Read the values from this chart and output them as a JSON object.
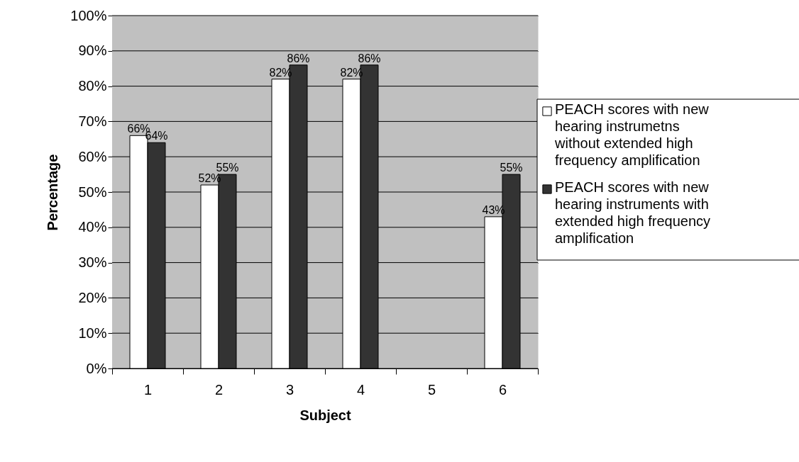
{
  "chart_data": {
    "type": "bar",
    "xlabel": "Subject",
    "ylabel": "Percentage",
    "categories": [
      "1",
      "2",
      "3",
      "4",
      "5",
      "6"
    ],
    "series": [
      {
        "name": "PEACH scores with new hearing instrumetns without extended high frequency amplification",
        "color": "#ffffff",
        "values": [
          66,
          52,
          82,
          82,
          null,
          43
        ],
        "value_labels": [
          "66%",
          "52%",
          "82%",
          "82%",
          null,
          "43%"
        ]
      },
      {
        "name": "PEACH scores with new hearing instruments with extended high frequency amplification",
        "color": "#333333",
        "values": [
          64,
          55,
          86,
          86,
          null,
          55
        ],
        "value_labels": [
          "64%",
          "55%",
          "86%",
          "86%",
          null,
          "55%"
        ]
      }
    ],
    "ylim": [
      0,
      100
    ],
    "yticks": [
      {
        "value": 0,
        "label": "0%"
      },
      {
        "value": 10,
        "label": "10%"
      },
      {
        "value": 20,
        "label": "20%"
      },
      {
        "value": 30,
        "label": "30%"
      },
      {
        "value": 40,
        "label": "40%"
      },
      {
        "value": 50,
        "label": "50%"
      },
      {
        "value": 60,
        "label": "60%"
      },
      {
        "value": 70,
        "label": "70%"
      },
      {
        "value": 80,
        "label": "80%"
      },
      {
        "value": 90,
        "label": "90%"
      },
      {
        "value": 100,
        "label": "100%"
      }
    ],
    "grid": "y",
    "legend": "right"
  }
}
